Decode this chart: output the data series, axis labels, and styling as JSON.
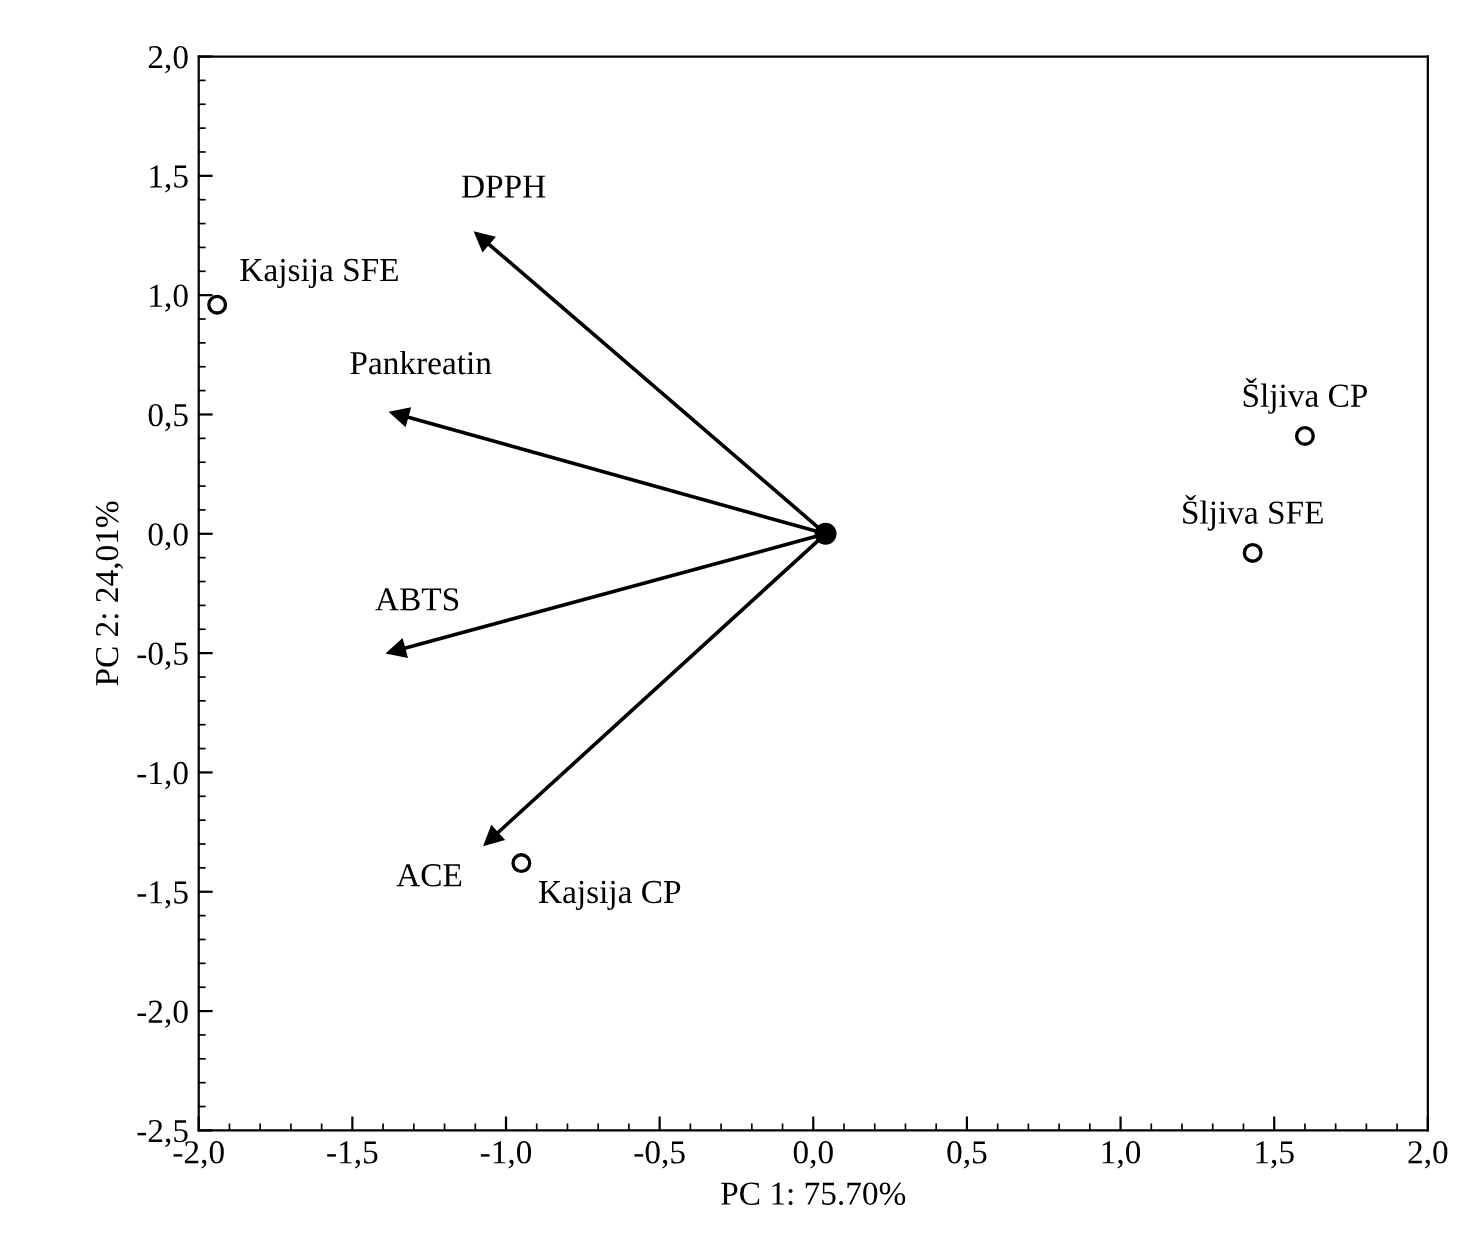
{
  "chart_data": {
    "type": "scatter",
    "xlabel": "PC 1: 75.70%",
    "ylabel": "PC 2: 24,01%",
    "xlim": [
      -2,
      2
    ],
    "ylim": [
      -2.5,
      2
    ],
    "xticks": [
      {
        "value": -2,
        "label": "-2,0"
      },
      {
        "value": -1.5,
        "label": "-1,5"
      },
      {
        "value": -1,
        "label": "-1,0"
      },
      {
        "value": -0.5,
        "label": "-0,5"
      },
      {
        "value": 0,
        "label": "0,0"
      },
      {
        "value": 0.5,
        "label": "0,5"
      },
      {
        "value": 1,
        "label": "1,0"
      },
      {
        "value": 1.5,
        "label": "1,5"
      },
      {
        "value": 2,
        "label": "2,0"
      }
    ],
    "yticks": [
      {
        "value": -2.5,
        "label": "-2,5"
      },
      {
        "value": -2,
        "label": "-2,0"
      },
      {
        "value": -1.5,
        "label": "-1,5"
      },
      {
        "value": -1,
        "label": "-1,0"
      },
      {
        "value": -0.5,
        "label": "-0,5"
      },
      {
        "value": 0,
        "label": "0,0"
      },
      {
        "value": 0.5,
        "label": "0,5"
      },
      {
        "value": 1,
        "label": "1,0"
      },
      {
        "value": 1.5,
        "label": "1,5"
      },
      {
        "value": 2,
        "label": "2,0"
      }
    ],
    "grid": false,
    "legend": false,
    "marker": "circle",
    "series": [
      {
        "color": "#000000",
        "x": [
          -1.94,
          -0.95,
          1.6,
          1.43
        ],
        "values": [
          0.96,
          -1.38,
          0.41,
          -0.08
        ]
      },
      {
        "type": "scatter",
        "marker": "circle",
        "color": "#000000",
        "x": [
          0.04
        ],
        "values": [
          0
        ]
      },
      {
        "type": "scatter",
        "marker": "triangle",
        "color": "#000000",
        "x": [
          -1.08,
          -1.35,
          -1.36,
          -1.05
        ],
        "values": [
          1.24,
          0.5,
          -0.49,
          -1.28
        ]
      }
    ],
    "annotations": [
      {
        "text": "Kajsija SFE",
        "x": -1.94,
        "y": 0.96
      },
      {
        "text": "Kajsija CP",
        "x": -0.95,
        "y": -1.38
      },
      {
        "text": "Šljiva CP",
        "x": 1.6,
        "y": 0.41
      },
      {
        "text": "Šljiva SFE",
        "x": 1.43,
        "y": -0.08
      },
      {
        "text": "DPPH",
        "x": -1.08,
        "y": 1.24
      },
      {
        "text": "Pankreatin",
        "x": -1.35,
        "y": 0.5
      },
      {
        "text": "ABTS",
        "x": -1.36,
        "y": -0.49
      },
      {
        "text": "ACE",
        "x": -1.05,
        "y": -1.28
      }
    ]
  }
}
